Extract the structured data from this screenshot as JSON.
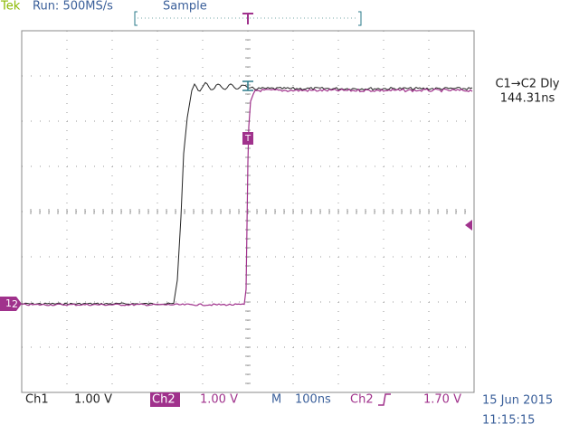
{
  "header": {
    "brand": "Tek",
    "run": "Run: 500MS/s",
    "mode": "Sample"
  },
  "measurement": {
    "label": "C1→C2 Dly",
    "value": "144.31ns"
  },
  "markers": {
    "ch1": "1",
    "ch2": "2",
    "trigger": "T"
  },
  "footer": {
    "ch1_label": "Ch1",
    "ch1_scale": "1.00 V",
    "ch2_label": "Ch2",
    "ch2_scale": "1.00 V",
    "timebase_label": "M",
    "timebase": "100ns",
    "trigger_source": "Ch2",
    "trigger_level": "1.70 V",
    "date": "15 Jun 2015",
    "time": "11:15:15"
  }
}
